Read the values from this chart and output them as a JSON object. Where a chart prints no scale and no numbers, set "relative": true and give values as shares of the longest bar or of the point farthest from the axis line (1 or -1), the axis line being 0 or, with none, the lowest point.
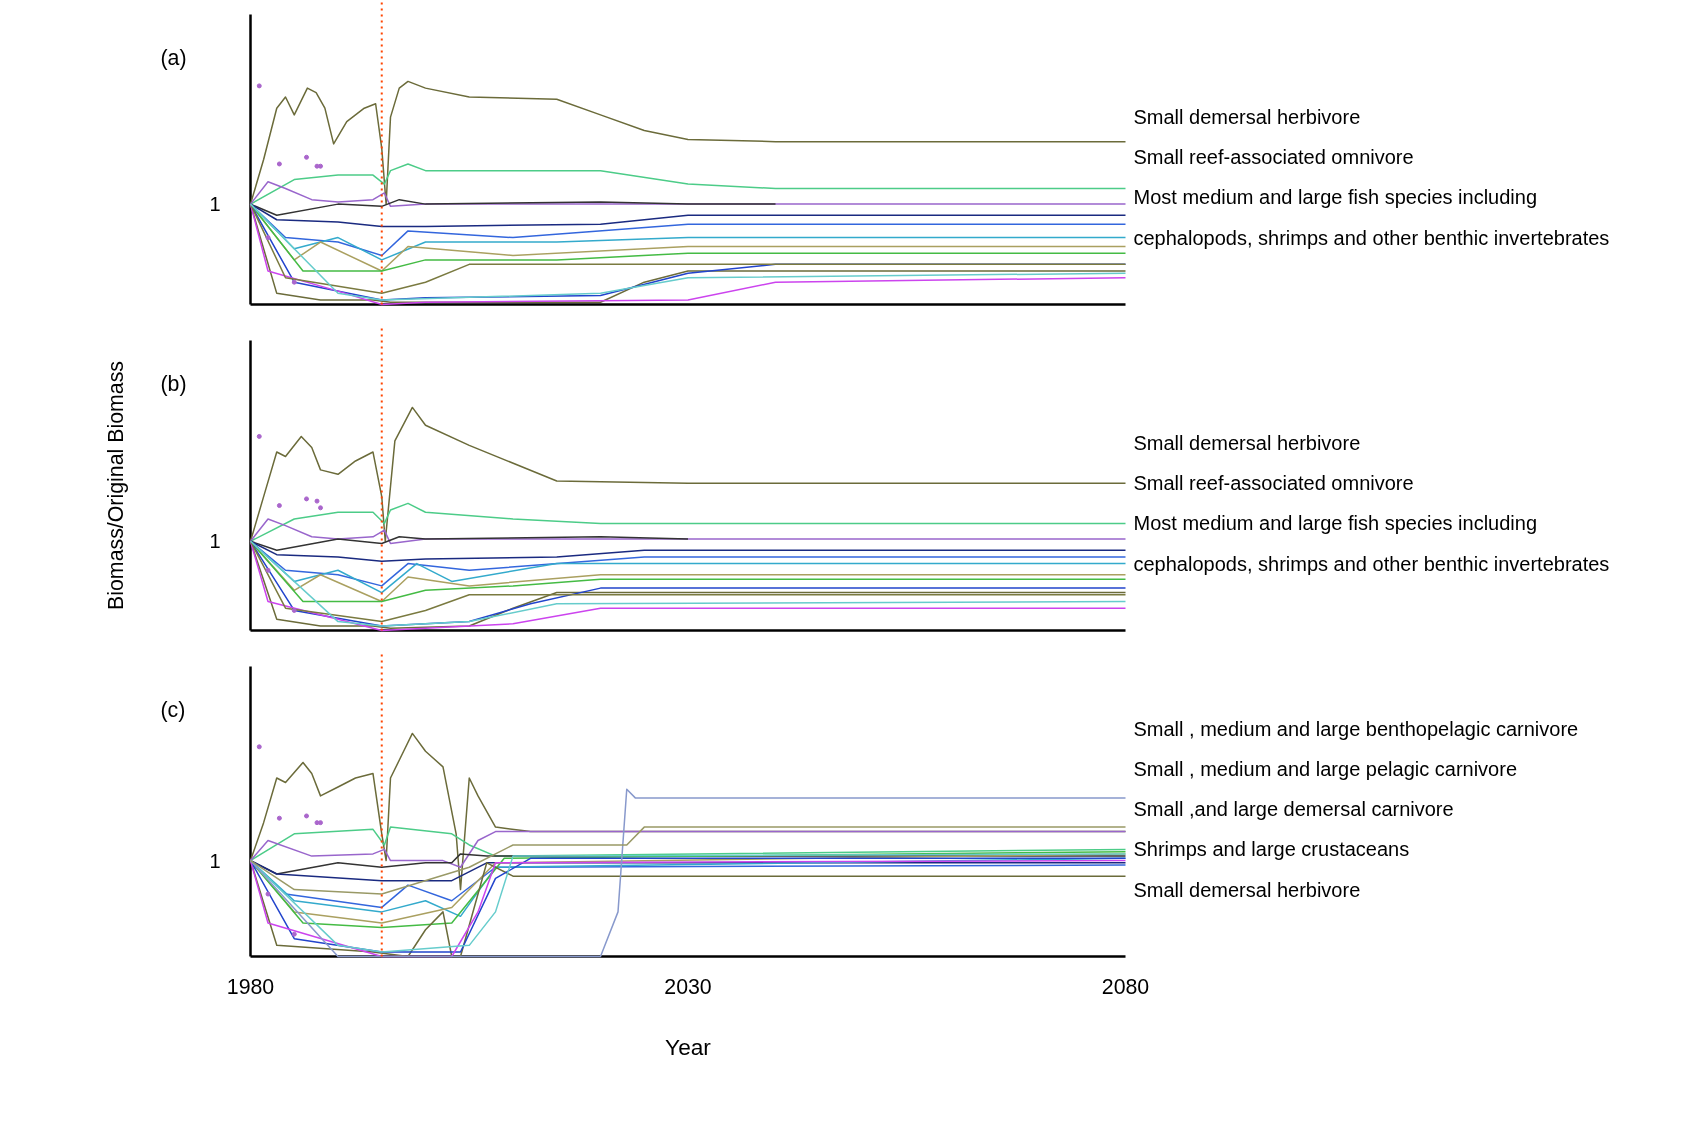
{
  "chart_data": [
    {
      "type": "line",
      "title": "(a)",
      "relative": true,
      "xlim": [
        1980,
        2080
      ],
      "xticks": [
        1980,
        2030,
        2080
      ],
      "tick_labels": false,
      "grid": false,
      "line_style": "solid",
      "ref_lines": [
        {
          "axis": "x",
          "value": 1995,
          "color": "#ff4400",
          "line_style": "dotted"
        }
      ],
      "annotations": [
        "1",
        "Small demersal herbivore",
        "Small reef-associated omnivore",
        "Most medium and large fish species including",
        "cephalopods, shrimps and other benthic invertebrates"
      ],
      "series": [
        {
          "color": "#6b6b3a",
          "x": [
            1980,
            1981.5,
            1983,
            1984,
            1985,
            1986.5,
            1987.5,
            1988.5,
            1989.5,
            1991,
            1993,
            1994.3,
            1995,
            1995.5,
            1996,
            1997,
            1998,
            2000,
            2005,
            2015,
            2020,
            2025,
            2030,
            2040,
            2080
          ],
          "values": [
            0.45,
            0.65,
            0.88,
            0.93,
            0.85,
            0.97,
            0.95,
            0.88,
            0.72,
            0.82,
            0.88,
            0.9,
            0.7,
            0.45,
            0.84,
            0.97,
            1.0,
            0.97,
            0.93,
            0.92,
            0.85,
            0.78,
            0.74,
            0.73,
            0.73
          ]
        },
        {
          "color": "#4ccc88",
          "x": [
            1980,
            1985,
            1990,
            1994,
            1995.3,
            1996,
            1998,
            2000,
            2020,
            2030,
            2040,
            2080
          ],
          "values": [
            0.45,
            0.56,
            0.58,
            0.58,
            0.54,
            0.6,
            0.63,
            0.6,
            0.6,
            0.54,
            0.52,
            0.52
          ]
        },
        {
          "color": "#9966cc",
          "x": [
            1980,
            1982,
            1984,
            1987,
            1990,
            1994,
            1995.3,
            1996,
            2000,
            2080
          ],
          "values": [
            0.45,
            0.55,
            0.52,
            0.47,
            0.46,
            0.47,
            0.5,
            0.44,
            0.45,
            0.45
          ]
        },
        {
          "color": "#333333",
          "x": [
            1980,
            1983,
            1990,
            1995,
            1997,
            2000,
            2020,
            2030,
            2040
          ],
          "values": [
            0.45,
            0.4,
            0.45,
            0.44,
            0.47,
            0.45,
            0.46,
            0.45,
            0.45
          ]
        },
        {
          "color": "#1a2a80",
          "x": [
            1980,
            1983,
            1990,
            1995,
            2000,
            2020,
            2030,
            2080
          ],
          "values": [
            0.45,
            0.38,
            0.37,
            0.35,
            0.35,
            0.36,
            0.4,
            0.4
          ]
        },
        {
          "color": "#3366dd",
          "x": [
            1980,
            1984,
            1990,
            1995,
            1998,
            2010,
            2030,
            2080
          ],
          "values": [
            0.45,
            0.3,
            0.28,
            0.22,
            0.33,
            0.3,
            0.36,
            0.36
          ]
        },
        {
          "color": "#33aacc",
          "x": [
            1980,
            1985,
            1990,
            1995,
            2000,
            2015,
            2030,
            2080
          ],
          "values": [
            0.45,
            0.25,
            0.3,
            0.2,
            0.28,
            0.28,
            0.3,
            0.3
          ]
        },
        {
          "color": "#aaa060",
          "x": [
            1980,
            1985,
            1988,
            1995,
            1998,
            2010,
            2030,
            2080
          ],
          "values": [
            0.45,
            0.2,
            0.28,
            0.15,
            0.26,
            0.22,
            0.26,
            0.26
          ]
        },
        {
          "color": "#44bb44",
          "x": [
            1980,
            1986,
            1995,
            2000,
            2015,
            2030,
            2080
          ],
          "values": [
            0.45,
            0.15,
            0.15,
            0.2,
            0.2,
            0.23,
            0.23
          ]
        },
        {
          "color": "#6b6b3a",
          "x": [
            1980,
            1983,
            1988,
            1994,
            1996,
            2020,
            2025,
            2030,
            2080
          ],
          "values": [
            0.45,
            0.05,
            0.02,
            0.02,
            0.01,
            0.01,
            0.1,
            0.15,
            0.15
          ]
        },
        {
          "color": "#2244cc",
          "x": [
            1980,
            1985,
            1995,
            2000,
            2020,
            2030,
            2040,
            2080
          ],
          "values": [
            0.45,
            0.1,
            0.02,
            0.03,
            0.04,
            0.14,
            0.18,
            0.18
          ]
        },
        {
          "color": "#cc44ee",
          "x": [
            1980,
            1982,
            1990,
            1995,
            2000,
            2030,
            2040,
            2080
          ],
          "values": [
            0.45,
            0.15,
            0.06,
            0.0,
            0.01,
            0.02,
            0.1,
            0.12
          ]
        },
        {
          "color": "#7a7a40",
          "x": [
            1980,
            1984,
            1995,
            2000,
            2005,
            2080
          ],
          "values": [
            0.45,
            0.12,
            0.05,
            0.1,
            0.18,
            0.18
          ]
        },
        {
          "color": "#66cccc",
          "x": [
            1980,
            1990,
            1995,
            2020,
            2030,
            2080
          ],
          "values": [
            0.45,
            0.05,
            0.02,
            0.05,
            0.12,
            0.14
          ]
        },
        {
          "type": "scatter",
          "color": "#aa66cc",
          "marker": "circle",
          "x": [
            1981,
            1983.3,
            1986.4,
            1987.6,
            1982,
            1985,
            1988
          ],
          "values": [
            0.98,
            0.63,
            0.66,
            0.62,
            0.3,
            0.1,
            0.62
          ]
        }
      ]
    },
    {
      "type": "line",
      "title": "(b)",
      "ylabel": "Biomass/Original Biomass",
      "relative": true,
      "xlim": [
        1980,
        2080
      ],
      "xticks": [
        1980,
        2030,
        2080
      ],
      "tick_labels": false,
      "grid": false,
      "line_style": "solid",
      "ref_lines": [
        {
          "axis": "x",
          "value": 1995,
          "color": "#ff4400",
          "line_style": "dotted"
        }
      ],
      "annotations": [
        "1",
        "Small demersal herbivore",
        "Small reef-associated omnivore",
        "Most medium and large fish species including",
        "cephalopods, shrimps and other benthic invertebrates"
      ],
      "series": [
        {
          "color": "#6b6b3a",
          "x": [
            1980,
            1981.5,
            1983,
            1984,
            1985.8,
            1987,
            1988,
            1990,
            1992,
            1994,
            1995,
            1995.4,
            1996.5,
            1998.5,
            2000,
            2005,
            2015,
            2030,
            2080
          ],
          "values": [
            0.4,
            0.6,
            0.8,
            0.78,
            0.87,
            0.82,
            0.72,
            0.7,
            0.76,
            0.8,
            0.6,
            0.4,
            0.85,
            1.0,
            0.92,
            0.83,
            0.67,
            0.66,
            0.66
          ]
        },
        {
          "color": "#4ccc88",
          "x": [
            1980,
            1985,
            1990,
            1994,
            1995.3,
            1996,
            1998,
            2000,
            2010,
            2020,
            2080
          ],
          "values": [
            0.4,
            0.5,
            0.53,
            0.53,
            0.48,
            0.54,
            0.57,
            0.53,
            0.5,
            0.48,
            0.48
          ]
        },
        {
          "color": "#9966cc",
          "x": [
            1980,
            1982,
            1984,
            1987,
            1990,
            1994,
            1995.3,
            1996,
            2000,
            2080
          ],
          "values": [
            0.4,
            0.5,
            0.47,
            0.42,
            0.41,
            0.42,
            0.45,
            0.39,
            0.41,
            0.41
          ]
        },
        {
          "color": "#333333",
          "x": [
            1980,
            1983,
            1990,
            1995,
            1997,
            2000,
            2020,
            2030
          ],
          "values": [
            0.4,
            0.36,
            0.41,
            0.39,
            0.42,
            0.41,
            0.42,
            0.41
          ]
        },
        {
          "color": "#1a2a80",
          "x": [
            1980,
            1983,
            1990,
            1995,
            2000,
            2015,
            2025,
            2080
          ],
          "values": [
            0.4,
            0.34,
            0.33,
            0.31,
            0.32,
            0.33,
            0.36,
            0.36
          ]
        },
        {
          "color": "#3366dd",
          "x": [
            1980,
            1984,
            1990,
            1995,
            1998,
            2005,
            2025,
            2080
          ],
          "values": [
            0.4,
            0.27,
            0.25,
            0.2,
            0.3,
            0.27,
            0.33,
            0.33
          ]
        },
        {
          "color": "#33aacc",
          "x": [
            1980,
            1985,
            1990,
            1995,
            1999,
            2003,
            2015,
            2080
          ],
          "values": [
            0.4,
            0.22,
            0.27,
            0.17,
            0.3,
            0.22,
            0.3,
            0.3
          ]
        },
        {
          "color": "#aaa060",
          "x": [
            1980,
            1985,
            1988,
            1995,
            1998,
            2005,
            2020,
            2080
          ],
          "values": [
            0.4,
            0.18,
            0.25,
            0.13,
            0.24,
            0.2,
            0.25,
            0.25
          ]
        },
        {
          "color": "#44bb44",
          "x": [
            1980,
            1986,
            1995,
            2000,
            2010,
            2020,
            2080
          ],
          "values": [
            0.4,
            0.13,
            0.13,
            0.18,
            0.2,
            0.23,
            0.23
          ]
        },
        {
          "color": "#6b6b3a",
          "x": [
            1980,
            1983,
            1988,
            1994,
            1996,
            2005,
            2010,
            2015,
            2080
          ],
          "values": [
            0.4,
            0.05,
            0.02,
            0.02,
            0.01,
            0.02,
            0.1,
            0.17,
            0.17
          ]
        },
        {
          "color": "#2244cc",
          "x": [
            1980,
            1985,
            1995,
            2000,
            2005,
            2012,
            2020,
            2080
          ],
          "values": [
            0.4,
            0.09,
            0.02,
            0.03,
            0.04,
            0.12,
            0.19,
            0.19
          ]
        },
        {
          "color": "#cc44ee",
          "x": [
            1980,
            1982,
            1990,
            1995,
            2000,
            2010,
            2020,
            2080
          ],
          "values": [
            0.4,
            0.13,
            0.05,
            0.0,
            0.01,
            0.03,
            0.1,
            0.1
          ]
        },
        {
          "color": "#7a7a40",
          "x": [
            1980,
            1984,
            1995,
            2000,
            2005,
            2080
          ],
          "values": [
            0.4,
            0.1,
            0.04,
            0.09,
            0.16,
            0.16
          ]
        },
        {
          "color": "#66cccc",
          "x": [
            1980,
            1990,
            1995,
            2005,
            2015,
            2080
          ],
          "values": [
            0.4,
            0.04,
            0.02,
            0.04,
            0.12,
            0.13
          ]
        },
        {
          "type": "scatter",
          "color": "#aa66cc",
          "marker": "circle",
          "x": [
            1981,
            1983.3,
            1986.4,
            1987.6,
            1982,
            1985,
            1988
          ],
          "values": [
            0.87,
            0.56,
            0.59,
            0.58,
            0.27,
            0.09,
            0.55
          ]
        }
      ]
    },
    {
      "type": "line",
      "title": "(c)",
      "xlabel": "Year",
      "relative": true,
      "xlim": [
        1980,
        2080
      ],
      "xticks": [
        1980,
        2030,
        2080
      ],
      "tick_labels": "x",
      "grid": false,
      "line_style": "solid",
      "ref_lines": [
        {
          "axis": "x",
          "value": 1995,
          "color": "#ff4400",
          "line_style": "dotted"
        }
      ],
      "annotations": [
        "1",
        "Small , medium and large benthopelagic carnivore",
        "Small , medium and large pelagic carnivore",
        "Small ,and large demersal carnivore",
        "Shrimps and large crustaceans",
        "Small demersal herbivore"
      ],
      "series": [
        {
          "color": "#6b6b3a",
          "x": [
            1980,
            1981.5,
            1983,
            1984,
            1986,
            1987,
            1988,
            1990,
            1992,
            1994,
            1995,
            1995.5,
            1996,
            1997.5,
            1998.5,
            2000,
            2002,
            2003.5,
            2004,
            2005,
            2006,
            2008,
            2012,
            2080
          ],
          "values": [
            0.43,
            0.6,
            0.8,
            0.78,
            0.87,
            0.82,
            0.72,
            0.76,
            0.8,
            0.82,
            0.55,
            0.43,
            0.8,
            0.92,
            1.0,
            0.92,
            0.85,
            0.55,
            0.3,
            0.8,
            0.72,
            0.58,
            0.56,
            0.56
          ]
        },
        {
          "color": "#4ccc88",
          "x": [
            1980,
            1985,
            1994,
            1995.3,
            1996,
            2003,
            2005,
            2008,
            2080
          ],
          "values": [
            0.43,
            0.55,
            0.57,
            0.5,
            0.58,
            0.55,
            0.5,
            0.45,
            0.48
          ]
        },
        {
          "color": "#9966cc",
          "x": [
            1980,
            1982,
            1987,
            1994,
            1995.3,
            1996,
            2002,
            2004,
            2006,
            2008,
            2080
          ],
          "values": [
            0.43,
            0.52,
            0.45,
            0.46,
            0.48,
            0.43,
            0.43,
            0.4,
            0.52,
            0.56,
            0.56
          ]
        },
        {
          "color": "#333333",
          "x": [
            1980,
            1983,
            1990,
            1995,
            2000,
            2003,
            2004,
            2007,
            2080
          ],
          "values": [
            0.43,
            0.37,
            0.42,
            0.4,
            0.42,
            0.42,
            0.46,
            0.45,
            0.45
          ]
        },
        {
          "color": "#1a2a80",
          "x": [
            1980,
            1983,
            1995,
            2003,
            2007,
            2080
          ],
          "values": [
            0.43,
            0.37,
            0.34,
            0.34,
            0.42,
            0.42
          ]
        },
        {
          "color": "#3366dd",
          "x": [
            1980,
            1984,
            1995,
            1998,
            2003,
            2008,
            2080
          ],
          "values": [
            0.43,
            0.28,
            0.22,
            0.32,
            0.25,
            0.4,
            0.41
          ]
        },
        {
          "color": "#33aacc",
          "x": [
            1980,
            1985,
            1995,
            2000,
            2004,
            2008,
            2080
          ],
          "values": [
            0.43,
            0.25,
            0.2,
            0.25,
            0.18,
            0.4,
            0.44
          ]
        },
        {
          "color": "#aaa060",
          "x": [
            1980,
            1985,
            1995,
            2003,
            2008,
            2080
          ],
          "values": [
            0.43,
            0.2,
            0.15,
            0.22,
            0.42,
            0.46
          ]
        },
        {
          "color": "#44bb44",
          "x": [
            1980,
            1986,
            1995,
            2003,
            2009,
            2080
          ],
          "values": [
            0.43,
            0.15,
            0.13,
            0.15,
            0.44,
            0.47
          ]
        },
        {
          "color": "#6b6b3a",
          "x": [
            1980,
            1983,
            1994,
            1998,
            2000,
            2002,
            2003,
            2004,
            2007,
            2010,
            2080
          ],
          "values": [
            0.43,
            0.05,
            0.02,
            0.0,
            0.12,
            0.2,
            0.0,
            0.0,
            0.42,
            0.36,
            0.36
          ]
        },
        {
          "color": "#2244cc",
          "x": [
            1980,
            1985,
            1995,
            2004,
            2008,
            2012,
            2080
          ],
          "values": [
            0.43,
            0.08,
            0.02,
            0.02,
            0.35,
            0.44,
            0.44
          ]
        },
        {
          "color": "#cc44ee",
          "x": [
            1980,
            1982,
            1995,
            2003,
            2006,
            2008,
            2080
          ],
          "values": [
            0.43,
            0.15,
            0.0,
            0.0,
            0.2,
            0.42,
            0.43
          ]
        },
        {
          "color": "#66cccc",
          "x": [
            1980,
            1990,
            1995,
            2005,
            2008,
            2010,
            2080
          ],
          "values": [
            0.43,
            0.05,
            0.02,
            0.05,
            0.2,
            0.45,
            0.46
          ]
        },
        {
          "color": "#8899cc",
          "x": [
            1980,
            1990,
            2000,
            2020,
            2022,
            2023,
            2024,
            2080
          ],
          "values": [
            0.43,
            0.0,
            0.0,
            0.0,
            0.2,
            0.75,
            0.71,
            0.71
          ]
        },
        {
          "color": "#999966",
          "x": [
            1980,
            1985,
            1995,
            2005,
            2010,
            2023,
            2025,
            2080
          ],
          "values": [
            0.43,
            0.3,
            0.28,
            0.4,
            0.5,
            0.5,
            0.58,
            0.58
          ]
        },
        {
          "type": "scatter",
          "color": "#aa66cc",
          "marker": "circle",
          "x": [
            1981,
            1983.3,
            1986.4,
            1987.6,
            1982,
            1985,
            1988
          ],
          "values": [
            0.94,
            0.62,
            0.63,
            0.6,
            0.28,
            0.1,
            0.6
          ]
        }
      ]
    }
  ]
}
